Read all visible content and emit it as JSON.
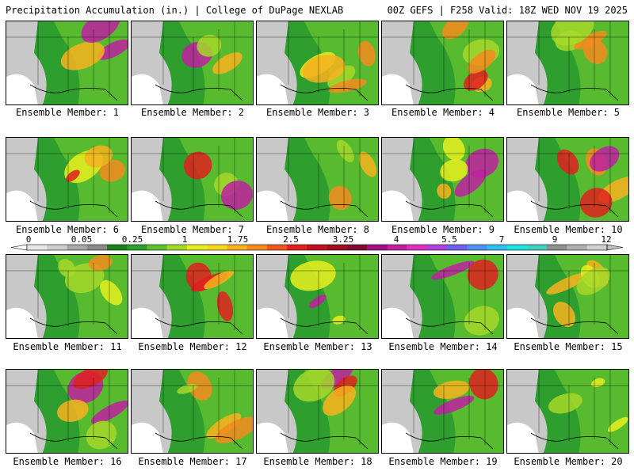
{
  "header": {
    "left": "Precipitation Accumulation (in.) | College of DuPage NEXLAB",
    "right": "00Z GEFS | F258 Valid: 18Z WED NOV 19 2025"
  },
  "member_label_prefix": "Ensemble Member:",
  "members": [
    "1",
    "2",
    "3",
    "4",
    "5",
    "6",
    "7",
    "8",
    "9",
    "10",
    "11",
    "12",
    "13",
    "14",
    "15",
    "16",
    "17",
    "18",
    "19",
    "20"
  ],
  "colorbar": {
    "tick_labels": [
      "0",
      "0.05",
      "0.25",
      "1",
      "1.75",
      "2.5",
      "3.25",
      "4",
      "5.5",
      "7",
      "9",
      "12"
    ],
    "colors": [
      "#e8e8e8",
      "#cfcfcf",
      "#a8a8a8",
      "#8a8a8a",
      "#1f7f1f",
      "#2e9e2e",
      "#5fbf2f",
      "#a6d82a",
      "#e6ef1f",
      "#f8d81f",
      "#f8b21f",
      "#f58a1f",
      "#f0561f",
      "#e0201f",
      "#c01020",
      "#a00c20",
      "#800a30",
      "#a01080",
      "#c020a0",
      "#e030c0",
      "#b040e0",
      "#7060f0",
      "#5090f0",
      "#30c0f0",
      "#20e0e0",
      "#40d0c0",
      "#909090",
      "#b0b0b0",
      "#d0d0d0"
    ]
  }
}
